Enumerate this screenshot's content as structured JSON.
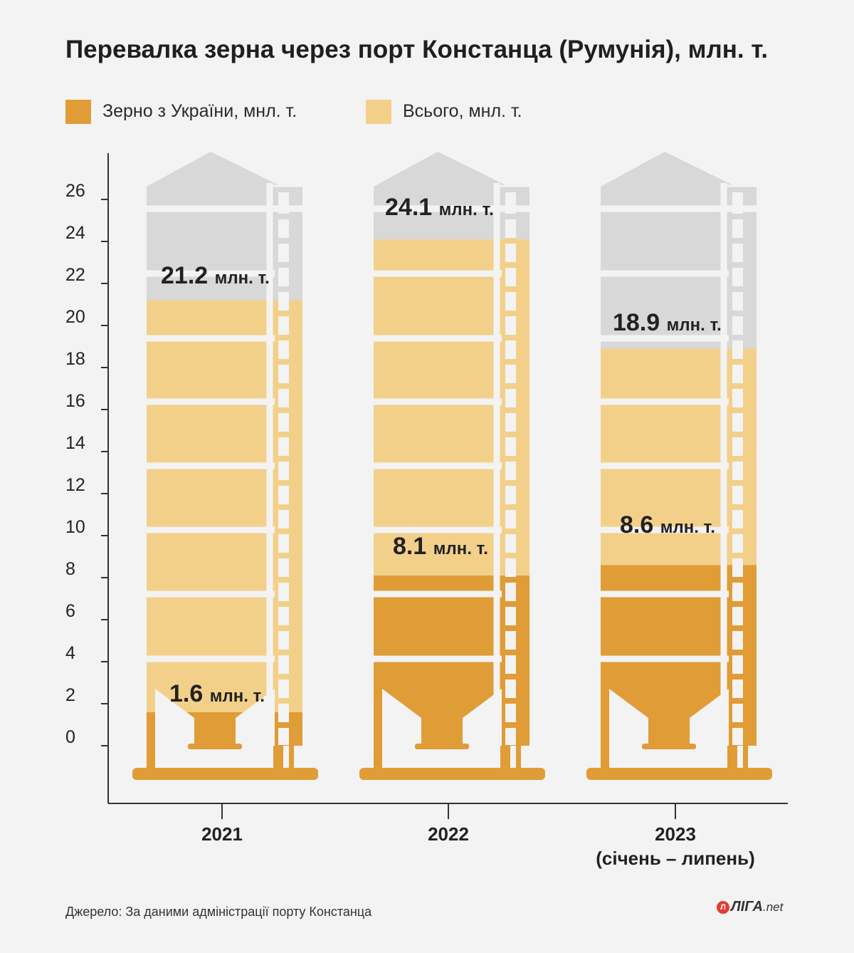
{
  "title": "Перевалка зерна через порт Констанца (Румунія), млн. т.",
  "legend": {
    "ukraine_label": "Зерно з України, мнл. т.",
    "total_label": "Всього, мнл. т."
  },
  "colors": {
    "ukraine": "#e09c36",
    "total": "#f3d08a",
    "empty": "#d8d8d8",
    "axis": "#333333",
    "text": "#222222"
  },
  "source": "Джерело: За даними адміністрації порту Констанца",
  "logo": {
    "text": "ЛІГА",
    "suffix": ".net"
  },
  "chart_data": {
    "type": "bar",
    "title": "Перевалка зерна через порт Констанца (Румунія), млн. т.",
    "unit": "млн. т.",
    "categories": [
      "2021",
      "2022",
      "2023"
    ],
    "category_sublabels": [
      "",
      "",
      "(січень – липень)"
    ],
    "series": [
      {
        "name": "Зерно з України, мнл. т.",
        "values": [
          1.6,
          8.1,
          8.6
        ]
      },
      {
        "name": "Всього, мнл. т.",
        "values": [
          21.2,
          24.1,
          18.9
        ]
      }
    ],
    "ylim": [
      0,
      26
    ],
    "yticks": [
      0,
      2,
      4,
      6,
      8,
      10,
      12,
      14,
      16,
      18,
      20,
      22,
      24,
      26
    ],
    "legend_position": "top-left",
    "grid": false
  }
}
